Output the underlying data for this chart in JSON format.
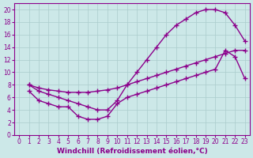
{
  "curve1_x": [
    1,
    2,
    3,
    4,
    5,
    6,
    7,
    8,
    9,
    10,
    11,
    12,
    13,
    14,
    15,
    16,
    17,
    18,
    19,
    20,
    21,
    22,
    23
  ],
  "curve1_y": [
    8,
    7,
    6.5,
    6,
    5.5,
    5,
    4.5,
    4,
    4,
    5.5,
    8,
    10,
    12,
    14,
    16,
    17.5,
    18.5,
    19.5,
    20,
    20,
    19.5,
    17.5,
    15
  ],
  "curve2_x": [
    1,
    2,
    3,
    4,
    5,
    6,
    7,
    8,
    9,
    10,
    11,
    12,
    13,
    14,
    15,
    16,
    17,
    18,
    19,
    20,
    21,
    22,
    23
  ],
  "curve2_y": [
    8,
    7.5,
    7.2,
    7,
    6.8,
    6.8,
    6.8,
    7,
    7.2,
    7.5,
    8,
    8.5,
    9,
    9.5,
    10,
    10.5,
    11,
    11.5,
    12,
    12.5,
    13,
    13.5,
    13.5
  ],
  "curve3_x": [
    1,
    2,
    3,
    4,
    5,
    6,
    7,
    8,
    9,
    10,
    11,
    12,
    13,
    14,
    15,
    16,
    17,
    18,
    19,
    20,
    21,
    22,
    23
  ],
  "curve3_y": [
    7,
    5.5,
    5,
    4.5,
    4.5,
    3,
    2.5,
    2.5,
    3,
    5,
    6,
    6.5,
    7,
    7.5,
    8,
    8.5,
    9,
    9.5,
    10,
    10.5,
    13.5,
    12.5,
    9
  ],
  "line_color": "#8b008b",
  "marker": "+",
  "marker_size": 4,
  "marker_lw": 1.0,
  "bg_color": "#cce8e8",
  "grid_color": "#aacccc",
  "xlim": [
    -0.5,
    23.5
  ],
  "ylim": [
    0,
    21
  ],
  "xticks": [
    0,
    1,
    2,
    3,
    4,
    5,
    6,
    7,
    8,
    9,
    10,
    11,
    12,
    13,
    14,
    15,
    16,
    17,
    18,
    19,
    20,
    21,
    22,
    23
  ],
  "yticks": [
    0,
    2,
    4,
    6,
    8,
    10,
    12,
    14,
    16,
    18,
    20
  ],
  "xlabel": "Windchill (Refroidissement éolien,°C)",
  "xlabel_fontsize": 6.5,
  "tick_fontsize": 5.5,
  "line_width": 1.0
}
